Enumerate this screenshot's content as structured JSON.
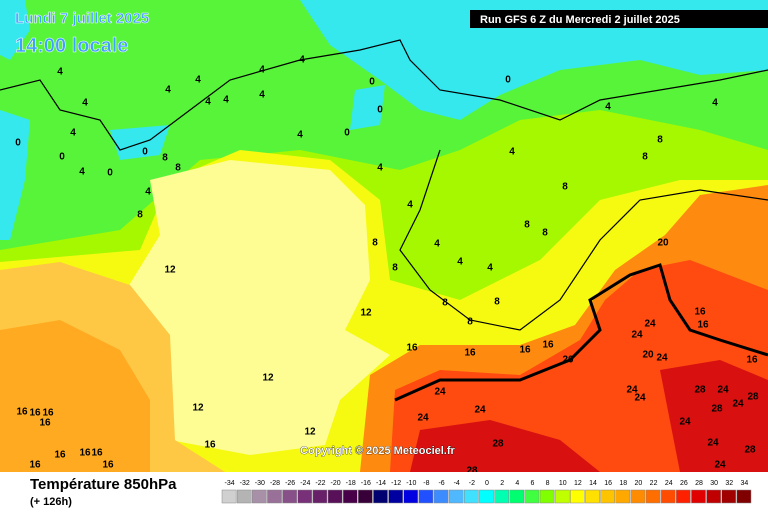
{
  "header": {
    "date": "Lundi 7 juillet 2025",
    "time": "14:00 locale",
    "run": "Run GFS 6 Z du Mercredi 2 juillet 2025"
  },
  "copyright": "Copyright © 2025 Meteociel.fr",
  "footer": {
    "title": "Température 850hPa",
    "lead": "(+ 126h)"
  },
  "legend": {
    "values": [
      -34,
      -32,
      -30,
      -28,
      -26,
      -24,
      -22,
      -20,
      -18,
      -16,
      -14,
      -12,
      -10,
      -8,
      -6,
      -4,
      -2,
      0,
      2,
      4,
      6,
      8,
      10,
      12,
      14,
      16,
      18,
      20,
      22,
      24,
      26,
      28,
      30,
      32,
      34
    ],
    "colors": [
      "#d0d0d0",
      "#b4b4b4",
      "#a890a8",
      "#987098",
      "#885088",
      "#783078",
      "#682068",
      "#581058",
      "#480048",
      "#380038",
      "#000070",
      "#0000a0",
      "#0000e0",
      "#2050ff",
      "#3c8cff",
      "#50b8ff",
      "#40e0ff",
      "#00ffff",
      "#00ffb0",
      "#00ff70",
      "#40ff40",
      "#80ff00",
      "#c0ff00",
      "#ffff00",
      "#ffe000",
      "#ffc400",
      "#ffa800",
      "#ff8c00",
      "#ff6e00",
      "#ff4c00",
      "#ff2000",
      "#e00000",
      "#c00000",
      "#a00000",
      "#800000"
    ]
  },
  "map": {
    "contour_labels": [
      4,
      4,
      4,
      0,
      0,
      4,
      0,
      0,
      8,
      8,
      4,
      8,
      4,
      4,
      4,
      4,
      4,
      4,
      4,
      4,
      0,
      0,
      0,
      0,
      4,
      12,
      12,
      12,
      12,
      12,
      8,
      8,
      4,
      4,
      4,
      4,
      4,
      8,
      8,
      8,
      8,
      8,
      8,
      8,
      8,
      4,
      4,
      20,
      16,
      16,
      16,
      16,
      20,
      24,
      24,
      20,
      24,
      16,
      16,
      16,
      24,
      24,
      24,
      28,
      28,
      24,
      24,
      28,
      24,
      28,
      24,
      28,
      24,
      24,
      28,
      24,
      16,
      16,
      16,
      16,
      16,
      16,
      16,
      16,
      16,
      16
    ]
  }
}
